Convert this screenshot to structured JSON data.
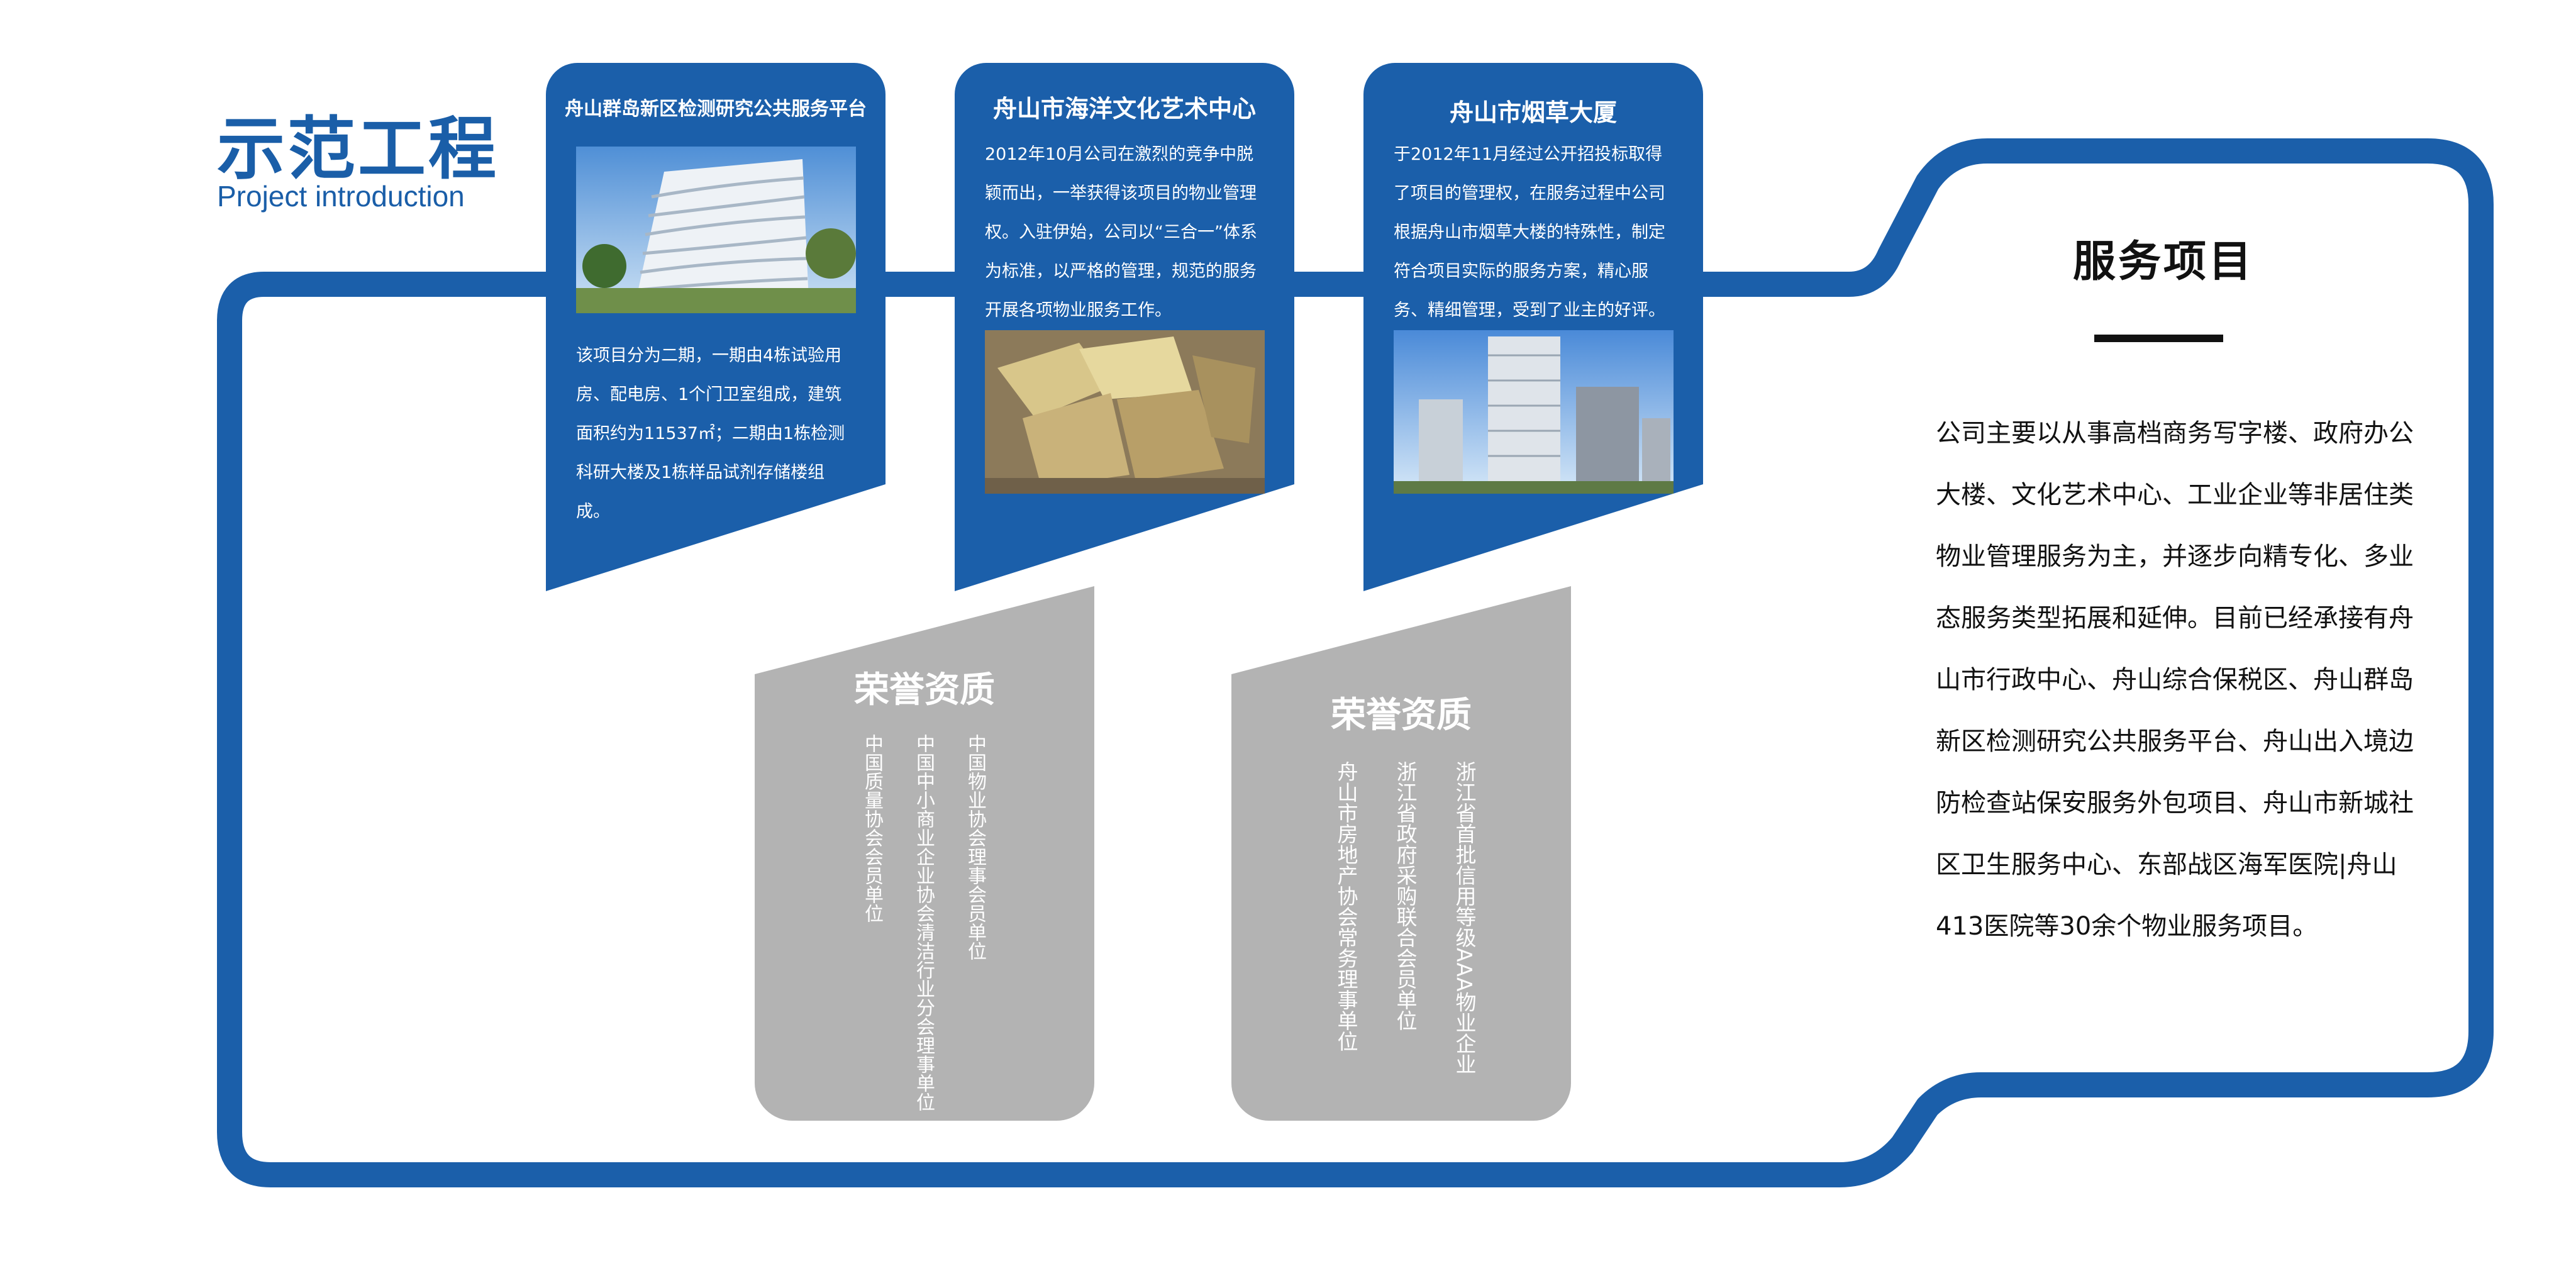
{
  "header": {
    "title": "示范工程",
    "subtitle": "Project introduction"
  },
  "colors": {
    "brand_blue": "#1b5faa",
    "honor_gray": "#b3b3b3"
  },
  "projects": [
    {
      "title": "舟山群岛新区检测研究公共服务平台",
      "text": "该项目分为二期，一期由4栋试验用房、配电房、1个门卫室组成，建筑面积约为11537㎡；二期由1栋检测科研大楼及1栋样品试剂存储楼组成。",
      "photo": "building-photo-wave-facade"
    },
    {
      "title": "舟山市海洋文化艺术中心",
      "text": "2012年10月公司在激烈的竞争中脱颖而出，一举获得该项目的物业管理权。入驻伊始，公司以“三合一”体系为标准，以严格的管理，规范的服务开展各项物业服务工作。",
      "photo": "building-photo-art-center"
    },
    {
      "title": "舟山市烟草大厦",
      "text": "于2012年11月经过公开招投标取得了项目的管理权，在服务过程中公司根据舟山市烟草大楼的特殊性，制定符合项目实际的服务方案，精心服务、精细管理，受到了业主的好评。",
      "photo": "building-photo-towers"
    }
  ],
  "honors": [
    {
      "title": "荣誉资质",
      "items": [
        "中国物业协会理事会员单位",
        "中国中小商业企业协会清洁行业分会理事单位",
        "中国质量协会会员单位"
      ]
    },
    {
      "title": "荣誉资质",
      "items": [
        "浙江省首批信用等级AAA物业企业",
        "浙江省政府采购联合会员单位",
        "舟山市房地产协会常务理事单位"
      ]
    }
  ],
  "services": {
    "title": "服务项目",
    "text": "公司主要以从事高档商务写字楼、政府办公大楼、文化艺术中心、工业企业等非居住类物业管理服务为主，并逐步向精专化、多业态服务类型拓展和延伸。目前已经承接有舟山市行政中心、舟山综合保税区、舟山群岛新区检测研究公共服务平台、舟山出入境边防检查站保安服务外包项目、舟山市新城社区卫生服务中心、东部战区海军医院|舟山413医院等30余个物业服务项目。"
  }
}
